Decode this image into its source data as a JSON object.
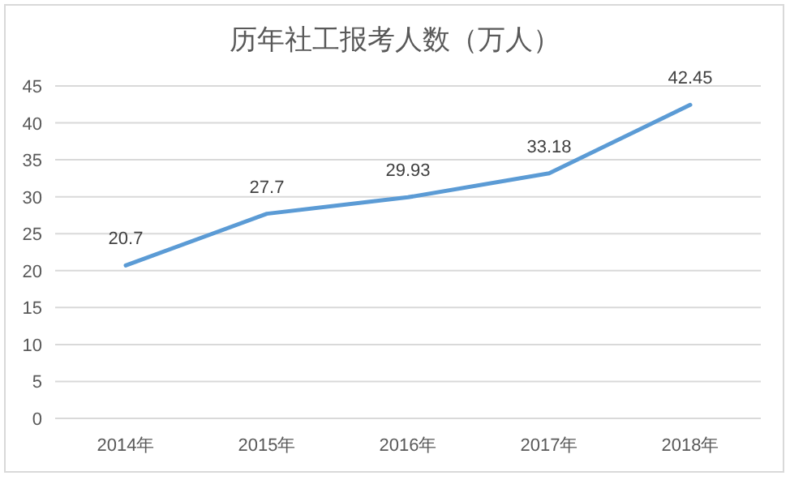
{
  "chart_data": {
    "type": "line",
    "title": "历年社工报考人数（万人）",
    "categories": [
      "2014年",
      "2015年",
      "2016年",
      "2017年",
      "2018年"
    ],
    "values": [
      20.7,
      27.7,
      29.93,
      33.18,
      42.45
    ],
    "color": "#5b9bd5",
    "ylim": [
      0,
      45
    ],
    "yticks": [
      0,
      5,
      10,
      15,
      20,
      25,
      30,
      35,
      40,
      45
    ],
    "grid": "y",
    "data_labels": true
  }
}
